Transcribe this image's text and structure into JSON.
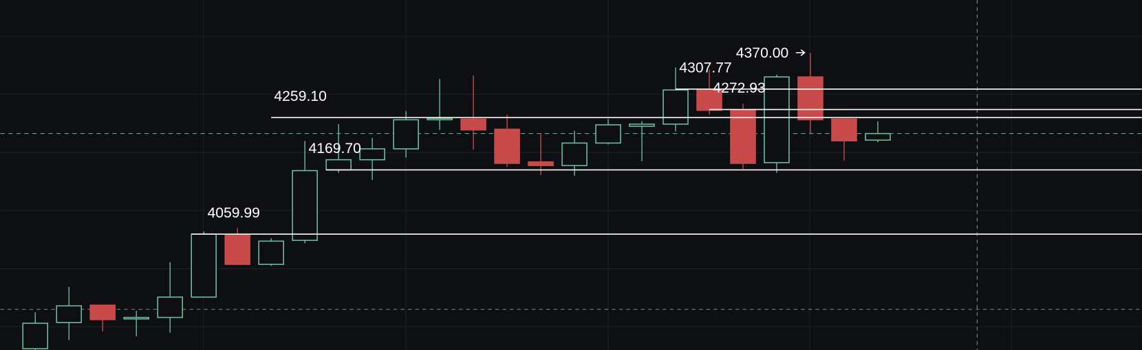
{
  "chart_data": {
    "type": "candlestick",
    "up_color": "#6dbf9b",
    "down_color": "#c94a4a",
    "open": [
      3864.2,
      3908.9,
      3938.7,
      3915.1,
      3917.6,
      3952.4,
      4059.2,
      4008.3,
      4049.3,
      4169.7,
      4187.1,
      4205.7,
      4255.4,
      4256.6,
      4239.2,
      4183.4,
      4177.1,
      4215.6,
      4244.2,
      4247.9,
      4306.3,
      4271.5,
      4182.1,
      4328.6,
      4256.6,
      4220.6
    ],
    "high": [
      3926.3,
      3969.8,
      3938.7,
      3928.8,
      4012.0,
      4064.5,
      4070.4,
      4053.0,
      4219.4,
      4247.9,
      4224.3,
      4270.3,
      4324.9,
      4331.1,
      4264.1,
      4231.8,
      4236.7,
      4256.6,
      4252.9,
      4344.8,
      4341.1,
      4282.7,
      4332.4,
      4369.6,
      4256.6,
      4252.9
    ],
    "low": [
      3861.8,
      3879.1,
      3894.0,
      3885.3,
      3891.6,
      3952.4,
      4008.3,
      4005.8,
      4044.3,
      4164.7,
      4152.3,
      4190.8,
      4238.0,
      4204.5,
      4174.7,
      4161.0,
      4159.8,
      4213.2,
      4184.6,
      4235.5,
      4264.1,
      4169.7,
      4164.7,
      4231.8,
      4185.8,
      4216.9
    ],
    "close": [
      3907.7,
      3937.5,
      3913.9,
      3917.6,
      3952.4,
      4059.99,
      4008.3,
      4048.0,
      4168.5,
      4187.1,
      4205.7,
      4255.4,
      4257.9,
      4238.0,
      4180.9,
      4177.1,
      4215.6,
      4246.7,
      4247.9,
      4306.3,
      4271.5,
      4180.9,
      4328.6,
      4255.4,
      4219.4,
      4231.8
    ],
    "ylim": [
      3862,
      4460
    ],
    "levels": [
      {
        "value": 4059.99,
        "label": "4059.99"
      },
      {
        "value": 4169.7,
        "label": "4169.70"
      },
      {
        "value": 4259.1,
        "label": "4259.10"
      },
      {
        "value": 4307.77,
        "label": "4307.77"
      },
      {
        "value": 4272.93,
        "label": "4272.93"
      },
      {
        "value": 4370.0,
        "label": "4370.00"
      }
    ],
    "level_color": "#ffffff",
    "last_price_line": true,
    "grid": true
  }
}
